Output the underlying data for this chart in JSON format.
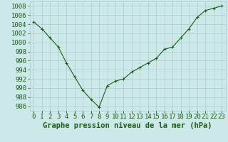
{
  "x": [
    0,
    1,
    2,
    3,
    4,
    5,
    6,
    7,
    8,
    9,
    10,
    11,
    12,
    13,
    14,
    15,
    16,
    17,
    18,
    19,
    20,
    21,
    22,
    23
  ],
  "y": [
    1004.5,
    1003.0,
    1001.0,
    999.0,
    995.5,
    992.5,
    989.5,
    987.5,
    985.8,
    990.5,
    991.5,
    992.0,
    993.5,
    994.5,
    995.5,
    996.5,
    998.5,
    999.0,
    1001.0,
    1003.0,
    1005.5,
    1007.0,
    1007.5,
    1008.0
  ],
  "line_color": "#1a5c1a",
  "marker": "+",
  "bg_color": "#cce8e8",
  "grid_color": "#aacccc",
  "xlabel": "Graphe pression niveau de la mer (hPa)",
  "xlabel_color": "#1a5c1a",
  "tick_color": "#1a5c1a",
  "ylim": [
    985,
    1009
  ],
  "yticks": [
    986,
    988,
    990,
    992,
    994,
    996,
    998,
    1000,
    1002,
    1004,
    1006,
    1008
  ],
  "xlim": [
    -0.5,
    23.5
  ],
  "label_font_size": 7.5,
  "tick_font_size": 6.5
}
